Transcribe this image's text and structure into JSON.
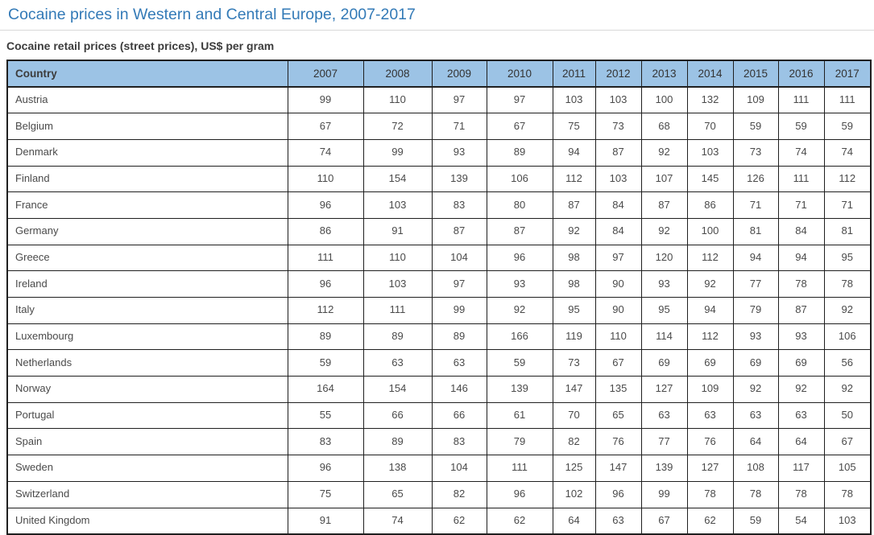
{
  "chart_data": {
    "type": "table",
    "title": "Cocaine prices in Western and Central Europe, 2007-2017",
    "subtitle": "Cocaine retail prices (street prices), US$ per gram",
    "header": {
      "country_label": "Country",
      "years": [
        "2007",
        "2008",
        "2009",
        "2010",
        "2011",
        "2012",
        "2013",
        "2014",
        "2015",
        "2016",
        "2017"
      ]
    },
    "rows": [
      {
        "country": "Austria",
        "values": [
          99,
          110,
          97,
          97,
          103,
          103,
          100,
          132,
          109,
          111,
          111
        ]
      },
      {
        "country": "Belgium",
        "values": [
          67,
          72,
          71,
          67,
          75,
          73,
          68,
          70,
          59,
          59,
          59
        ]
      },
      {
        "country": "Denmark",
        "values": [
          74,
          99,
          93,
          89,
          94,
          87,
          92,
          103,
          73,
          74,
          74
        ]
      },
      {
        "country": "Finland",
        "values": [
          110,
          154,
          139,
          106,
          112,
          103,
          107,
          145,
          126,
          111,
          112
        ]
      },
      {
        "country": "France",
        "values": [
          96,
          103,
          83,
          80,
          87,
          84,
          87,
          86,
          71,
          71,
          71
        ]
      },
      {
        "country": "Germany",
        "values": [
          86,
          91,
          87,
          87,
          92,
          84,
          92,
          100,
          81,
          84,
          81
        ]
      },
      {
        "country": "Greece",
        "values": [
          111,
          110,
          104,
          96,
          98,
          97,
          120,
          112,
          94,
          94,
          95
        ]
      },
      {
        "country": "Ireland",
        "values": [
          96,
          103,
          97,
          93,
          98,
          90,
          93,
          92,
          77,
          78,
          78
        ]
      },
      {
        "country": "Italy",
        "values": [
          112,
          111,
          99,
          92,
          95,
          90,
          95,
          94,
          79,
          87,
          92
        ]
      },
      {
        "country": "Luxembourg",
        "values": [
          89,
          89,
          89,
          166,
          119,
          110,
          114,
          112,
          93,
          93,
          106
        ]
      },
      {
        "country": "Netherlands",
        "values": [
          59,
          63,
          63,
          59,
          73,
          67,
          69,
          69,
          69,
          69,
          56
        ]
      },
      {
        "country": "Norway",
        "values": [
          164,
          154,
          146,
          139,
          147,
          135,
          127,
          109,
          92,
          92,
          92
        ]
      },
      {
        "country": "Portugal",
        "values": [
          55,
          66,
          66,
          61,
          70,
          65,
          63,
          63,
          63,
          63,
          50
        ]
      },
      {
        "country": "Spain",
        "values": [
          83,
          89,
          83,
          79,
          82,
          76,
          77,
          76,
          64,
          64,
          67
        ]
      },
      {
        "country": "Sweden",
        "values": [
          96,
          138,
          104,
          111,
          125,
          147,
          139,
          127,
          108,
          117,
          105
        ]
      },
      {
        "country": "Switzerland",
        "values": [
          75,
          65,
          82,
          96,
          102,
          96,
          99,
          78,
          78,
          78,
          78
        ]
      },
      {
        "country": "United Kingdom",
        "values": [
          91,
          74,
          62,
          62,
          64,
          63,
          67,
          62,
          59,
          54,
          103
        ]
      }
    ]
  },
  "colors": {
    "title_text": "#337ab7",
    "header_bg": "#9cc3e5",
    "table_border": "#1f1f1f",
    "heading_text": "#3c3c3c",
    "cell_text": "#4a4a4a",
    "divider_line": "#d9d9d9",
    "page_bg": "#ffffff"
  }
}
